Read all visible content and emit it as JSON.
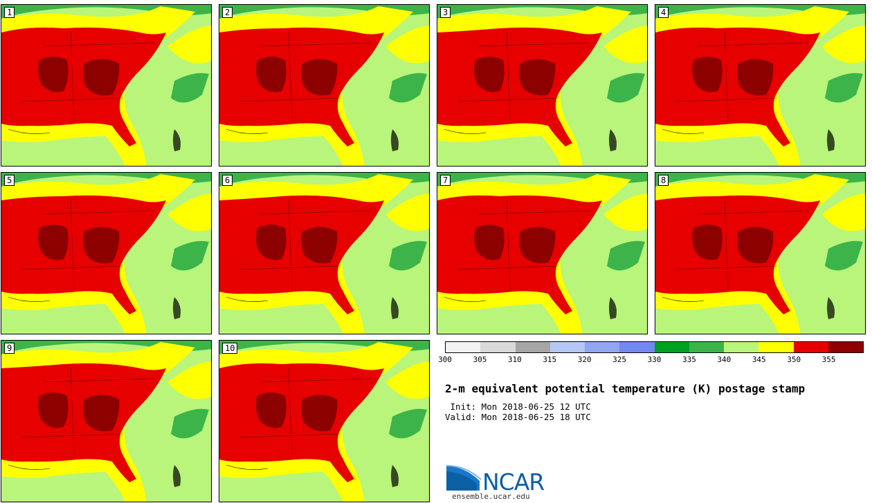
{
  "panels": [
    {
      "label": "1"
    },
    {
      "label": "2"
    },
    {
      "label": "3"
    },
    {
      "label": "4"
    },
    {
      "label": "5"
    },
    {
      "label": "6"
    },
    {
      "label": "7"
    },
    {
      "label": "8"
    },
    {
      "label": "9"
    },
    {
      "label": "10"
    }
  ],
  "colorbar": {
    "colors": [
      "#f2f2f2",
      "#d9d9d9",
      "#a6a6a6",
      "#b4c8f5",
      "#8fa6f0",
      "#7388ee",
      "#00a020",
      "#3cb44a",
      "#b8f57a",
      "#ffff00",
      "#e60000",
      "#8c0000"
    ],
    "ticks": [
      "300",
      "305",
      "310",
      "315",
      "320",
      "325",
      "330",
      "335",
      "340",
      "345",
      "350",
      "355"
    ]
  },
  "title": "2-m equivalent potential temperature (K) postage stamp",
  "init": " Init: Mon 2018-06-25 12 UTC",
  "valid": "Valid: Mon 2018-06-25 18 UTC",
  "logo": {
    "name": "NCAR",
    "url": "ensemble.ucar.edu"
  }
}
